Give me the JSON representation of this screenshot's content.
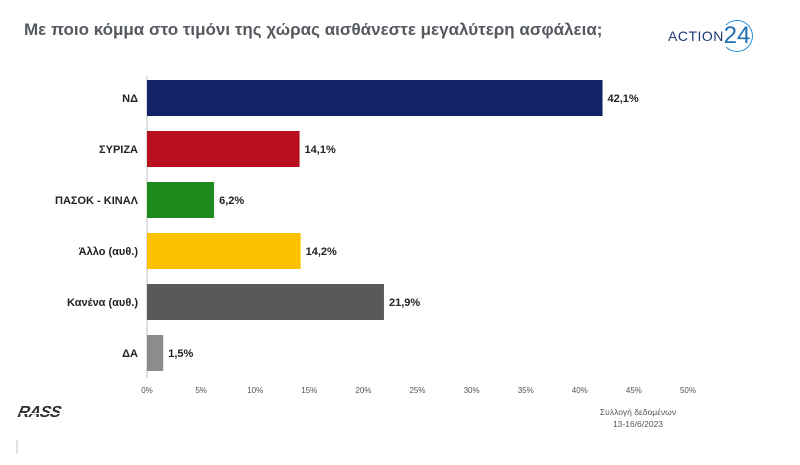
{
  "header": {
    "title": "Με ποιο κόμμα στο τιμόνι της χώρας αισθάνεστε μεγαλύτερη ασφάλεια;",
    "brand_text": "ACTION",
    "brand_number": "24"
  },
  "footer": {
    "source_logo": "RASS",
    "collection_label": "Συλλογή δεδομένων",
    "collection_dates": "13-16/6/2023"
  },
  "chart_data": {
    "type": "bar",
    "orientation": "horizontal",
    "title": "Με ποιο κόμμα στο τιμόνι της χώρας αισθάνεστε μεγαλύτερη ασφάλεια;",
    "categories": [
      "ΝΔ",
      "ΣΥΡΙΖΑ",
      "ΠΑΣΟΚ - ΚΙΝΑΛ",
      "Άλλο (αυθ.)",
      "Κανένα (αυθ.)",
      "ΔΑ"
    ],
    "values": [
      42.1,
      14.1,
      6.2,
      14.2,
      21.9,
      1.5
    ],
    "value_labels": [
      "42,1%",
      "14,1%",
      "6,2%",
      "14,2%",
      "21,9%",
      "1,5%"
    ],
    "colors": [
      "#112266",
      "#b8101c",
      "#1e8a1e",
      "#fcc200",
      "#595959",
      "#8c8c8c"
    ],
    "x_ticks": [
      "0%",
      "5%",
      "10%",
      "15%",
      "20%",
      "25%",
      "30%",
      "35%",
      "40%",
      "45%",
      "50%"
    ],
    "xlim": [
      0,
      50
    ],
    "grid": false,
    "legend": "none"
  }
}
